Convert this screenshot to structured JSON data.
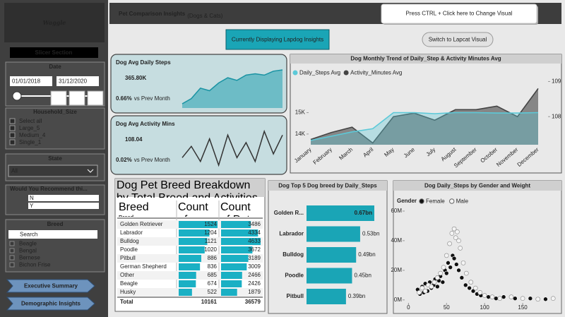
{
  "sidebar": {
    "logo": "Waggle",
    "slicer_section": "Slicer Section",
    "date": {
      "title": "Date",
      "start": "01/01/2018",
      "end": "31/12/2020"
    },
    "household_size": {
      "title": "Household_Size",
      "items": [
        "Select all",
        "Large_5",
        "Medium_4",
        "Single_1"
      ]
    },
    "state": {
      "title": "State",
      "selected": "All"
    },
    "recommend": {
      "title": "Would You Recommend thi...",
      "items": [
        "N",
        "Y"
      ]
    },
    "breed": {
      "title": "Breed",
      "search": "Search",
      "items": [
        "Beagle",
        "Bengal",
        "Bernese",
        "Bichon Frise"
      ]
    },
    "nav": [
      "Executive Summary",
      "Demographic Insights"
    ]
  },
  "header": {
    "title": "Pet Comparison Insights",
    "subtitle": "(Dogs & Cats)",
    "tooltip": "Press CTRL + Click here to Change Visual",
    "current": "Currently Displaying Lapdog Insights",
    "switch": "Switch to Lapcat Visual"
  },
  "kpis": [
    {
      "title": "Dog Avg Daily Steps",
      "value": "365.80K",
      "change": "0.66%",
      "change_label": "vs Prev Month",
      "trend": [
        340,
        344,
        352,
        350,
        356,
        360,
        358,
        362,
        363,
        362,
        365,
        366
      ]
    },
    {
      "title": "Dog Avg Activity Mins",
      "value": "108.04",
      "change": "0.02%",
      "change_label": "vs Prev Month",
      "trend": [
        105,
        108,
        104,
        110,
        103,
        111,
        105,
        109,
        104,
        112,
        106,
        111
      ]
    }
  ],
  "table": {
    "title": "Dog Pet Breed Breakdown by Total Breed and Activities",
    "columns": [
      "Breed",
      "Count of Breed",
      "Count of Pet ID"
    ],
    "rows": [
      [
        "Golden Retriever",
        1524,
        3486
      ],
      [
        "Labrador",
        1204,
        4334
      ],
      [
        "Bulldog",
        1121,
        4633
      ],
      [
        "Poodle",
        1020,
        3672
      ],
      [
        "Pitbull",
        886,
        3189
      ],
      [
        "German Shepherd",
        836,
        3009
      ],
      [
        "Other",
        685,
        2466
      ],
      [
        "Beagle",
        674,
        2426
      ],
      [
        "Husky",
        522,
        1879
      ]
    ],
    "total": [
      "Total",
      10161,
      36579
    ]
  },
  "chart_data": [
    {
      "type": "line",
      "title": "Dog Monthly Trend of Daily_Step & Activity Minutes Avg",
      "categories": [
        "January",
        "February",
        "March",
        "April",
        "May",
        "June",
        "July",
        "August",
        "September",
        "October",
        "November",
        "December"
      ],
      "series": [
        {
          "name": "Daily_Steps Avg",
          "color": "#5cc9d8",
          "values": [
            13700,
            13900,
            14100,
            14250,
            15000,
            15000,
            14950,
            15000,
            15000,
            14980,
            14980,
            15000
          ]
        },
        {
          "name": "Activity_Minutes Avg",
          "color": "#444444",
          "axis": "y2",
          "values": [
            107.35,
            107.55,
            107.7,
            107.25,
            108.0,
            108.1,
            107.9,
            108.2,
            108.2,
            108.3,
            108.0,
            108.8
          ]
        }
      ],
      "ylim": [
        13500,
        16700
      ],
      "yticks": [
        {
          "value": 14000,
          "label": "14K"
        },
        {
          "value": 15000,
          "label": "15K"
        }
      ],
      "y2lim": [
        107.2,
        109.15
      ],
      "y2ticks": [
        108,
        109
      ],
      "legend": "top-left"
    },
    {
      "type": "bar",
      "orientation": "horizontal",
      "title": "Dog Top 5 Dog breed by Daily_Steps",
      "categories": [
        "Golden R...",
        "Labrador",
        "Bulldog",
        "Poodle",
        "Pitbull"
      ],
      "values": [
        0.67,
        0.53,
        0.49,
        0.45,
        0.39
      ],
      "value_labels": [
        "0.67bn",
        "0.53bn",
        "0.49bn",
        "0.45bn",
        "0.39bn"
      ],
      "color": "#1aa5b6"
    },
    {
      "type": "scatter",
      "title": "Dog Daily_Steps by Gender and Weight",
      "legend_title": "Gender",
      "series": [
        {
          "name": "Female",
          "color": "#111111",
          "x": [
            12,
            15,
            18,
            20,
            22,
            25,
            28,
            30,
            33,
            35,
            38,
            40,
            42,
            45,
            48,
            50,
            52,
            55,
            58,
            60,
            63,
            66,
            70,
            75,
            80,
            85,
            90,
            95,
            105,
            115,
            125,
            140,
            160,
            180
          ],
          "values": [
            7,
            4,
            9,
            5,
            11,
            6,
            12,
            8,
            10,
            14,
            9,
            13,
            16,
            12,
            20,
            18,
            25,
            22,
            30,
            28,
            24,
            20,
            15,
            10,
            8,
            6,
            4,
            3,
            2,
            1,
            2,
            1,
            1,
            0.5
          ]
        },
        {
          "name": "Male",
          "color": "#f4f4f4",
          "x": [
            14,
            18,
            22,
            26,
            30,
            34,
            38,
            42,
            46,
            50,
            54,
            57,
            60,
            62,
            64,
            66,
            68,
            72,
            76,
            82,
            88,
            94,
            100,
            110,
            120,
            135,
            150,
            170,
            190
          ],
          "values": [
            5,
            8,
            6,
            10,
            9,
            12,
            15,
            18,
            22,
            30,
            38,
            45,
            48,
            42,
            46,
            40,
            35,
            25,
            18,
            12,
            8,
            5,
            3,
            2,
            1,
            2,
            1,
            0.5,
            1
          ]
        }
      ],
      "xlim": [
        -5,
        200
      ],
      "xticks": [
        0,
        50,
        100,
        150
      ],
      "ylim": [
        -2,
        70
      ],
      "yticks": [
        {
          "value": 0,
          "label": "0M"
        },
        {
          "value": 20,
          "label": "20M"
        },
        {
          "value": 40,
          "label": "40M"
        },
        {
          "value": 60,
          "label": "60M"
        }
      ]
    }
  ]
}
